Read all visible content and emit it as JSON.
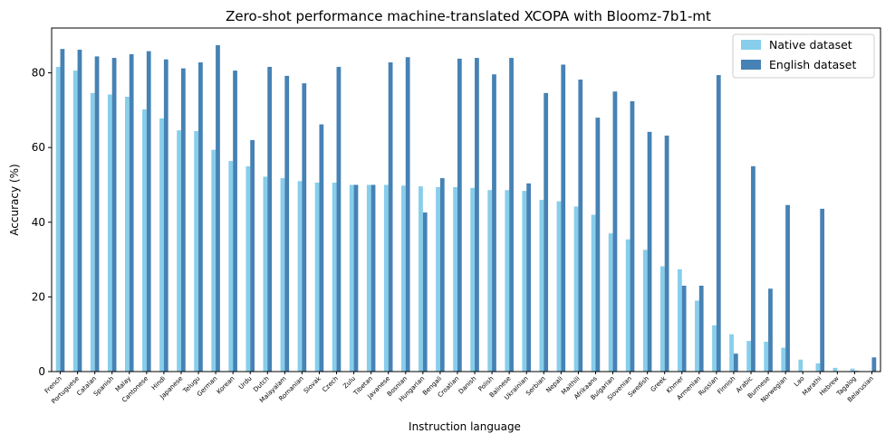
{
  "chart_data": {
    "type": "bar",
    "title": "Zero-shot performance machine-translated XCOPA with Bloomz-7b1-mt",
    "xlabel": "Instruction language",
    "ylabel": "Accuracy (%)",
    "ylim": [
      0,
      92
    ],
    "yticks": [
      0,
      20,
      40,
      60,
      80
    ],
    "grid": false,
    "legend_position": "top-right",
    "categories": [
      "French",
      "Portuguese",
      "Catalan",
      "Spanish",
      "Malay",
      "Cantonese",
      "Hindi",
      "Japanese",
      "Telugu",
      "German",
      "Korean",
      "Urdu",
      "Dutch",
      "Malayalam",
      "Romanian",
      "Slovak",
      "Czech",
      "Zulu",
      "Tibetan",
      "Javanese",
      "Bosnian",
      "Hungarian",
      "Bengali",
      "Croatian",
      "Danish",
      "Polish",
      "Balinese",
      "Ukrainian",
      "Serbian",
      "Nepali",
      "Maithili",
      "Afrikaans",
      "Bulgarian",
      "Slovenian",
      "Swedish",
      "Greek",
      "Khmer",
      "Armenian",
      "Russian",
      "Finnish",
      "Arabic",
      "Burmese",
      "Norwegian",
      "Lao",
      "Marathi",
      "Hebrew",
      "Tagalog",
      "Belarusian"
    ],
    "series": [
      {
        "name": "Native dataset",
        "color": "#87ceeb",
        "values": [
          81.6,
          80.6,
          74.6,
          74.2,
          73.6,
          70.2,
          67.8,
          64.6,
          64.4,
          59.4,
          56.4,
          55.0,
          52.2,
          51.8,
          51.0,
          50.6,
          50.6,
          50.0,
          50.0,
          50.0,
          49.8,
          49.6,
          49.4,
          49.4,
          49.2,
          48.6,
          48.6,
          48.4,
          46.0,
          45.6,
          44.2,
          42.0,
          37.0,
          35.4,
          32.6,
          28.2,
          27.4,
          19.0,
          12.4,
          10.0,
          8.2,
          8.0,
          6.4,
          3.2,
          2.2,
          1.0,
          0.8,
          0.0
        ]
      },
      {
        "name": "English dataset",
        "color": "#4682b4",
        "values": [
          86.4,
          86.2,
          84.4,
          84.0,
          85.0,
          85.8,
          83.6,
          81.2,
          82.8,
          87.4,
          80.6,
          62.0,
          81.6,
          79.2,
          77.2,
          66.2,
          81.6,
          50.0,
          50.0,
          82.8,
          84.2,
          42.6,
          51.8,
          83.8,
          84.0,
          79.6,
          84.0,
          50.4,
          74.6,
          82.2,
          78.2,
          68.0,
          75.0,
          72.4,
          64.2,
          63.2,
          23.0,
          23.0,
          79.4,
          4.8,
          55.0,
          22.2,
          44.6,
          0.0,
          43.6,
          0.0,
          0.2,
          3.8
        ]
      }
    ]
  }
}
